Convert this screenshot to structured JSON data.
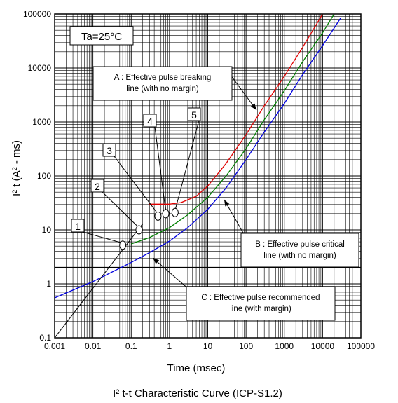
{
  "chart_data": {
    "type": "line",
    "title": "I² t-t Characteristic Curve (ICP-S1.2)",
    "xlabel": "Time (msec)",
    "ylabel": "I² t (A² - ms)",
    "xscale": "log",
    "yscale": "log",
    "xlim": [
      0.001,
      100000
    ],
    "ylim": [
      0.1,
      100000
    ],
    "grid": true,
    "x_ticks": [
      "0.001",
      "0.01",
      "0.1",
      "1",
      "10",
      "100",
      "1000",
      "10000",
      "100000"
    ],
    "y_ticks": [
      "0.1",
      "1",
      "10",
      "100",
      "1000",
      "10000",
      "100000"
    ],
    "condition": "Ta=25°C",
    "series": [
      {
        "name": "A : Effective pulse breaking line (with no margin)",
        "color": "#e00000",
        "points": [
          [
            0.3,
            30
          ],
          [
            1,
            30
          ],
          [
            2,
            32
          ],
          [
            5,
            42
          ],
          [
            10,
            65
          ],
          [
            30,
            170
          ],
          [
            100,
            580
          ],
          [
            300,
            2000
          ],
          [
            1000,
            7000
          ],
          [
            3000,
            24000
          ],
          [
            10000,
            100000
          ]
        ]
      },
      {
        "name": "B : Effective pulse critical line (with no margin)",
        "color": "#008000",
        "points": [
          [
            0.1,
            5.5
          ],
          [
            0.3,
            7.2
          ],
          [
            1,
            11
          ],
          [
            3,
            19
          ],
          [
            10,
            40
          ],
          [
            30,
            100
          ],
          [
            100,
            320
          ],
          [
            300,
            1100
          ],
          [
            1000,
            3800
          ],
          [
            3000,
            13000
          ],
          [
            10000,
            45000
          ],
          [
            20000,
            100000
          ]
        ]
      },
      {
        "name": "C : Effective pulse recommended line (with margin)",
        "color": "#0000e0",
        "points": [
          [
            0.001,
            0.55
          ],
          [
            0.01,
            1.1
          ],
          [
            0.1,
            2.5
          ],
          [
            0.3,
            3.8
          ],
          [
            1,
            6.2
          ],
          [
            3,
            11
          ],
          [
            10,
            24
          ],
          [
            30,
            60
          ],
          [
            100,
            200
          ],
          [
            300,
            650
          ],
          [
            1000,
            2200
          ],
          [
            3000,
            7500
          ],
          [
            10000,
            26000
          ],
          [
            30000,
            85000
          ]
        ]
      }
    ],
    "reference_line": {
      "y": 2,
      "color": "#000000"
    },
    "markers": [
      {
        "label": "1",
        "x": 0.06,
        "y": 5.2
      },
      {
        "label": "2",
        "x": 0.16,
        "y": 10
      },
      {
        "label": "3",
        "x": 0.5,
        "y": 18
      },
      {
        "label": "4",
        "x": 0.8,
        "y": 20
      },
      {
        "label": "5",
        "x": 1.4,
        "y": 21
      }
    ],
    "annotations": [
      {
        "lines": [
          "A : Effective pulse breaking",
          "line (with no margin)"
        ],
        "target_x": 150,
        "target_y": 1000
      },
      {
        "lines": [
          "B : Effective pulse critical",
          "line (with no margin)"
        ],
        "target_x": 12,
        "target_y": 25
      },
      {
        "lines": [
          "C : Effective pulse recommended",
          "line (with margin)"
        ],
        "target_x": 1.2,
        "target_y": 5
      }
    ]
  }
}
